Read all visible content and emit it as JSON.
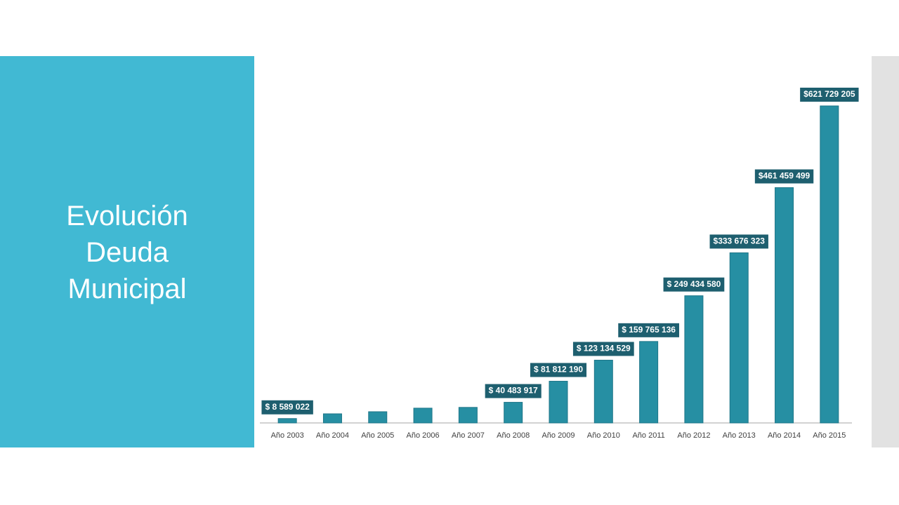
{
  "title": "Evolución Deuda Municipal",
  "chart_data": {
    "type": "bar",
    "categories": [
      "Año 2003",
      "Año 2004",
      "Año 2005",
      "Año 2006",
      "Año 2007",
      "Año 2008",
      "Año 2009",
      "Año 2010",
      "Año 2011",
      "Año 2012",
      "Año 2013",
      "Año 2014",
      "Año 2015"
    ],
    "values": [
      8589022,
      17900000,
      22000000,
      29000000,
      30500000,
      40483917,
      81812190,
      123134529,
      159765136,
      249434580,
      333676323,
      461459499,
      621729205
    ],
    "value_labels": [
      "$ 8 589 022",
      null,
      null,
      null,
      null,
      "$ 40 483 917",
      "$ 81 812 190",
      "$ 123 134 529",
      "$ 159 765 136",
      "$ 249 434 580",
      "$333 676 323",
      "$461 459 499",
      "$621 729 205"
    ],
    "color": "#268fa3",
    "label_color": "#1e5f6f"
  }
}
